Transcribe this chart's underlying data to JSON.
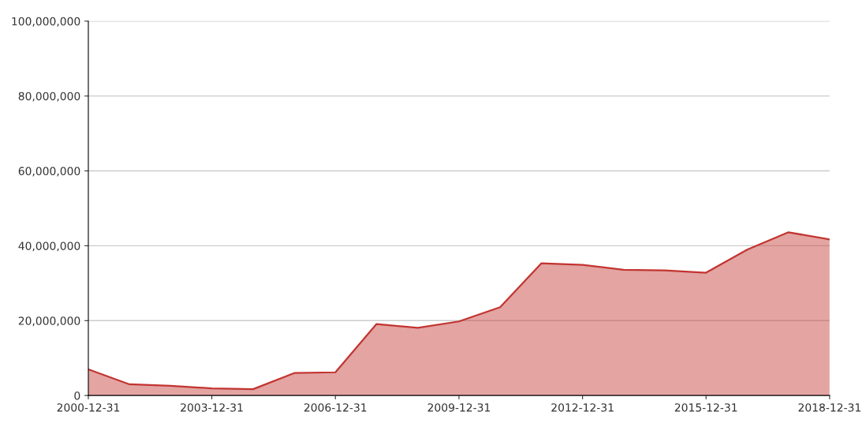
{
  "chart_data": {
    "type": "area",
    "x": [
      "2000-12-31",
      "2001-12-31",
      "2002-12-31",
      "2003-12-31",
      "2004-12-31",
      "2005-12-31",
      "2006-12-31",
      "2007-12-31",
      "2008-12-31",
      "2009-12-31",
      "2010-12-31",
      "2011-12-31",
      "2012-12-31",
      "2013-12-31",
      "2014-12-31",
      "2015-12-31",
      "2016-12-31",
      "2017-12-31",
      "2018-12-31"
    ],
    "series": [
      {
        "color": "#c23531",
        "values": [
          7000000,
          3000000,
          2600000,
          1900000,
          1700000,
          6000000,
          6200000,
          19100000,
          18100000,
          19800000,
          23600000,
          35300000,
          34900000,
          33600000,
          33400000,
          32800000,
          39000000,
          43600000,
          41700000
        ]
      }
    ],
    "xlim": [
      "2000-12-31",
      "2018-12-31"
    ],
    "xticks": [
      {
        "value": "2000-12-31",
        "label": "2000-12-31"
      },
      {
        "value": "2003-12-31",
        "label": "2003-12-31"
      },
      {
        "value": "2006-12-31",
        "label": "2006-12-31"
      },
      {
        "value": "2009-12-31",
        "label": "2009-12-31"
      },
      {
        "value": "2012-12-31",
        "label": "2012-12-31"
      },
      {
        "value": "2015-12-31",
        "label": "2015-12-31"
      },
      {
        "value": "2018-12-31",
        "label": "2018-12-31"
      }
    ],
    "ylim": [
      0,
      100000000
    ],
    "yticks": [
      {
        "value": 0,
        "label": "0"
      },
      {
        "value": 20000000,
        "label": "20,000,000"
      },
      {
        "value": 40000000,
        "label": "40,000,000"
      },
      {
        "value": 60000000,
        "label": "60,000,000"
      },
      {
        "value": 80000000,
        "label": "80,000,000"
      },
      {
        "value": 100000000,
        "label": "100,000,000"
      }
    ],
    "grid": "y"
  }
}
